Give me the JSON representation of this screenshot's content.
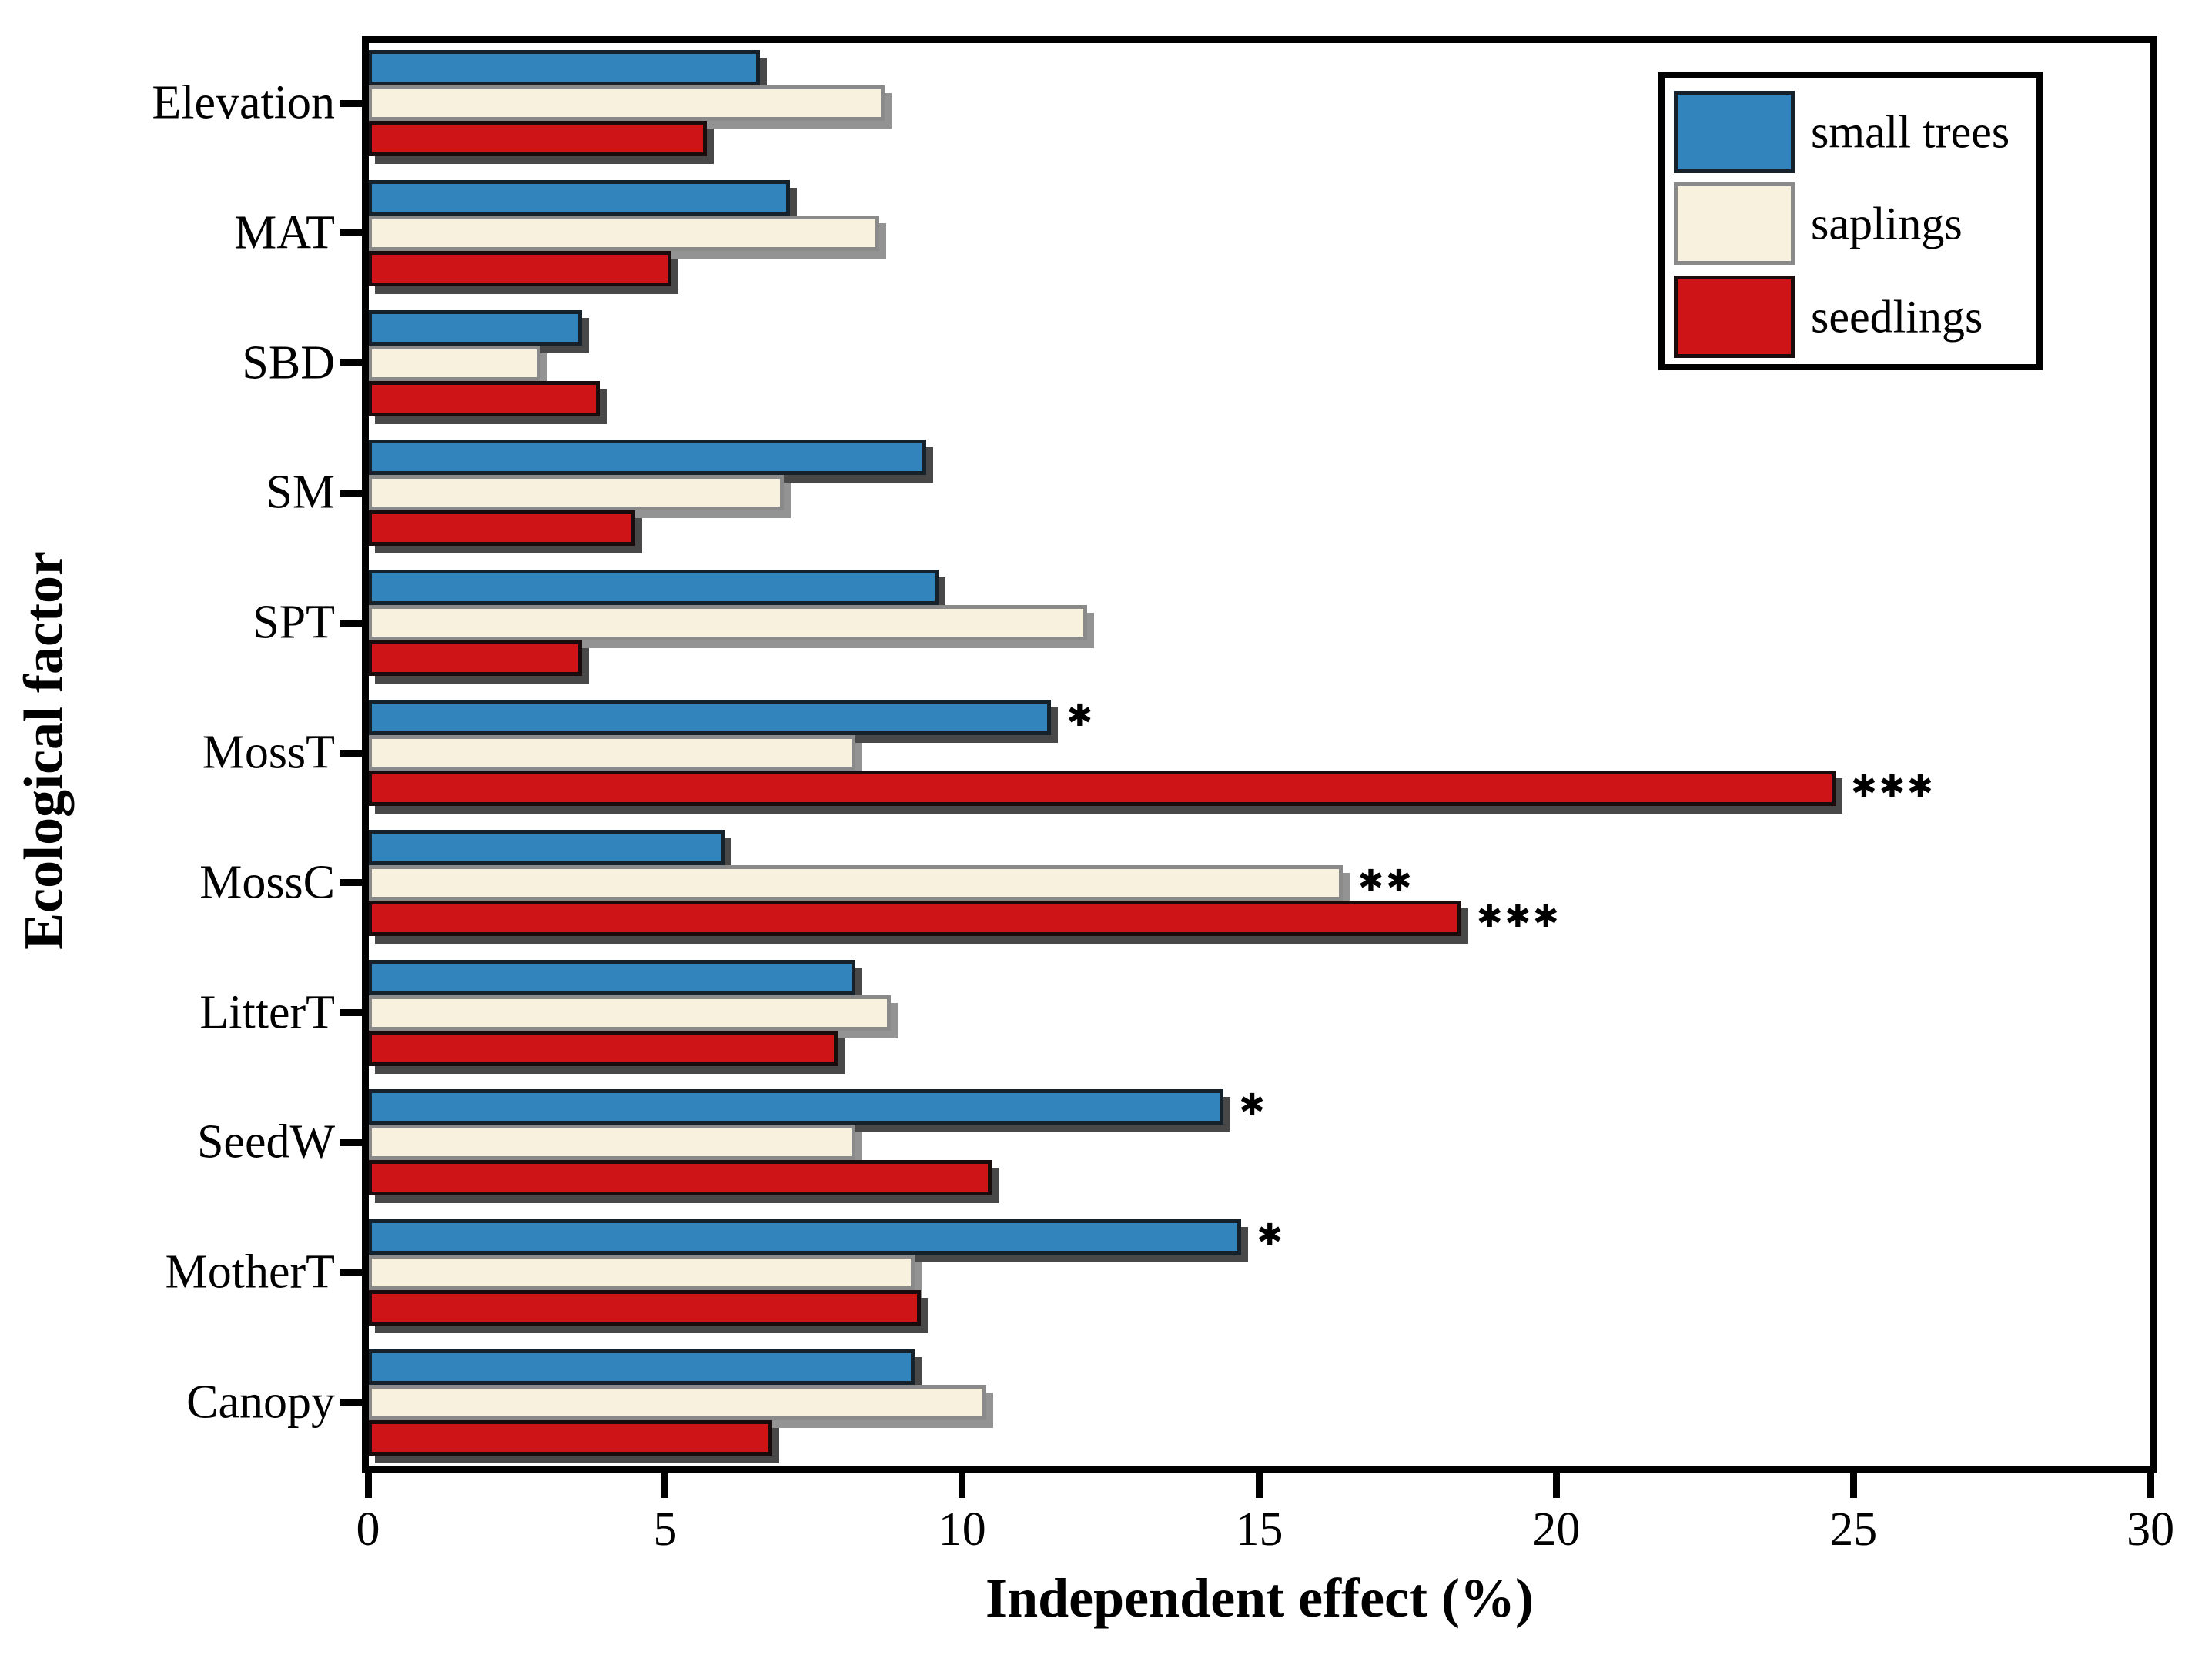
{
  "figure": {
    "background_color": "#ffffff",
    "frame_color": "#000000"
  },
  "chart_data": {
    "type": "bar",
    "orientation": "horizontal",
    "title": "",
    "xlabel": "Independent effect (%)",
    "ylabel": "Ecological factor",
    "xlim": [
      0,
      30
    ],
    "xtick_labels": [
      "0",
      "5",
      "10",
      "15",
      "20",
      "25",
      "30"
    ],
    "xtick_values": [
      0,
      5,
      10,
      15,
      20,
      25,
      30
    ],
    "grid": "off",
    "legend_position": "top-right",
    "categories": [
      "Elevation",
      "MAT",
      "SBD",
      "SM",
      "SPT",
      "MossT",
      "MossC",
      "LitterT",
      "SeedW",
      "MotherT",
      "Canopy"
    ],
    "series": [
      {
        "name": "small trees",
        "fill_color": "#3285bc",
        "border_color": "#16222b",
        "shadow": "dark",
        "values": [
          6.6,
          7.1,
          3.6,
          9.4,
          9.6,
          11.5,
          6.0,
          8.2,
          14.4,
          14.7,
          9.2
        ],
        "significance": [
          "",
          "",
          "",
          "",
          "",
          "*",
          "",
          "",
          "*",
          "*",
          ""
        ]
      },
      {
        "name": "saplings",
        "fill_color": "#f8f1dd",
        "border_color": "#8a8a8a",
        "shadow": "grey",
        "values": [
          8.7,
          8.6,
          2.9,
          7.0,
          12.1,
          8.2,
          16.4,
          8.8,
          8.2,
          9.2,
          10.4
        ],
        "significance": [
          "",
          "",
          "",
          "",
          "",
          "",
          "**",
          "",
          "",
          "",
          ""
        ]
      },
      {
        "name": "seedlings",
        "fill_color": "#ce1417",
        "border_color": "#1a0c0c",
        "shadow": "dark",
        "values": [
          5.7,
          5.1,
          3.9,
          4.5,
          3.6,
          24.7,
          18.4,
          7.9,
          10.5,
          9.3,
          6.8
        ],
        "significance": [
          "",
          "",
          "",
          "",
          "",
          "***",
          "***",
          "",
          "",
          "",
          ""
        ]
      }
    ],
    "significance_marker": "✱",
    "marker_color": "#000000"
  }
}
